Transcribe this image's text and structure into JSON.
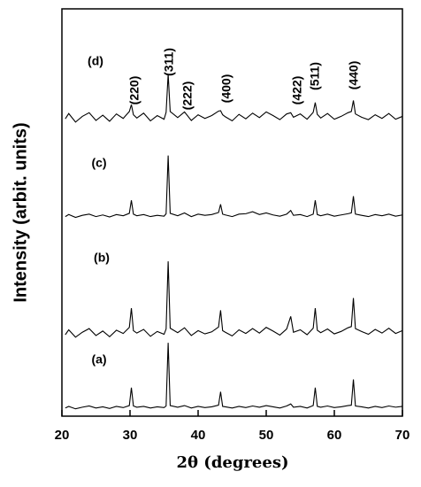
{
  "chart_data": {
    "type": "line",
    "xlabel": "2θ (degrees)",
    "ylabel": "Intensity (arbit. units)",
    "xlim": [
      20,
      70
    ],
    "xticks": [
      20,
      30,
      40,
      50,
      60,
      70
    ],
    "ylim": [
      0,
      100
    ],
    "annotations": [
      "(220)",
      "(311)",
      "(222)",
      "(400)",
      "(422)",
      "(511)",
      "(440)"
    ],
    "x": [
      20.5,
      21,
      22,
      23,
      24,
      25,
      26,
      27,
      28,
      29,
      29.9,
      30.2,
      30.5,
      31,
      32,
      33,
      34,
      35,
      35.3,
      35.6,
      35.9,
      37,
      38,
      39,
      40,
      41,
      42,
      43,
      43.3,
      43.6,
      44,
      45,
      46,
      47,
      48,
      49,
      50,
      51,
      52,
      53,
      53.6,
      54,
      55,
      56,
      56.9,
      57.2,
      57.5,
      58,
      59,
      60,
      61,
      62,
      62.5,
      62.8,
      63.1,
      64,
      65,
      66,
      67,
      68,
      69,
      70
    ],
    "series": [
      {
        "name": "(a)",
        "color": "#000000",
        "values": [
          2,
          2.4,
          1.8,
          2.2,
          2.5,
          2,
          2.3,
          1.9,
          2.4,
          2.1,
          2.6,
          7,
          2.5,
          2.2,
          2.4,
          2,
          2.3,
          2.1,
          2.5,
          18,
          2.6,
          2.2,
          2.6,
          2,
          2.4,
          2.1,
          2.3,
          2.7,
          6,
          2.4,
          2.3,
          2,
          2.4,
          2.1,
          2.5,
          2.2,
          2.6,
          2.3,
          2,
          2.5,
          3,
          2.2,
          2.4,
          2,
          2.6,
          7,
          2.4,
          2.2,
          2.5,
          2.1,
          2.3,
          2.6,
          2.7,
          9,
          2.5,
          2.3,
          2,
          2.4,
          2.1,
          2.5,
          2.2,
          2.4
        ]
      },
      {
        "name": "(b)",
        "color": "#000000",
        "values": [
          20,
          21.2,
          19.4,
          20.6,
          21.5,
          19.8,
          20.9,
          19.5,
          21.1,
          20.3,
          21.8,
          26.5,
          21,
          20.4,
          21.3,
          19.6,
          20.8,
          20.1,
          21.4,
          38,
          21.6,
          20.5,
          21.7,
          19.8,
          21,
          20.2,
          20.7,
          21.9,
          26,
          21,
          20.6,
          19.7,
          21.2,
          20.3,
          21.5,
          20.4,
          21.8,
          20.9,
          19.9,
          21.4,
          24.5,
          20.6,
          21.2,
          20,
          21.6,
          26.5,
          21.1,
          20.5,
          21.4,
          20.2,
          20.8,
          21.7,
          22,
          29,
          21.5,
          20.8,
          20.1,
          21.3,
          20.4,
          21.6,
          20.3,
          21
        ]
      },
      {
        "name": "(c)",
        "color": "#000000",
        "values": [
          49,
          49.5,
          48.8,
          49.3,
          49.6,
          49,
          49.4,
          48.9,
          49.5,
          49.2,
          49.8,
          53,
          49.6,
          49.2,
          49.5,
          49,
          49.3,
          49.1,
          49.7,
          64,
          49.8,
          49.2,
          49.9,
          49,
          49.6,
          49.3,
          49.5,
          50,
          52,
          49.6,
          49.4,
          49,
          49.6,
          49.7,
          50.2,
          49.5,
          49.9,
          49.4,
          49.1,
          49.6,
          50.5,
          49.3,
          49.5,
          49,
          49.6,
          53,
          49.5,
          49.2,
          49.6,
          49.1,
          49.4,
          49.7,
          49.9,
          54,
          49.6,
          49.3,
          49,
          49.5,
          49.2,
          49.6,
          49.1,
          49.4
        ]
      },
      {
        "name": "(d)",
        "color": "#000000",
        "values": [
          73,
          74.3,
          72.2,
          73.6,
          74.5,
          72.6,
          73.9,
          72.4,
          74.2,
          73.1,
          74.8,
          76.5,
          74,
          73.2,
          74.4,
          72.5,
          73.8,
          72.9,
          74.6,
          84,
          74.8,
          73.3,
          74.7,
          72.6,
          74,
          73.1,
          73.8,
          74.9,
          75,
          74,
          73.5,
          72.5,
          74.1,
          73,
          74.4,
          73.3,
          74.7,
          73.8,
          72.8,
          74.2,
          74.5,
          73.4,
          74.2,
          72.9,
          74.6,
          77,
          74.1,
          73.2,
          74.3,
          72.9,
          73.6,
          74.5,
          74.8,
          77.5,
          74.2,
          73.4,
          72.8,
          74,
          73.1,
          74.3,
          72.9,
          73.6
        ]
      }
    ]
  }
}
